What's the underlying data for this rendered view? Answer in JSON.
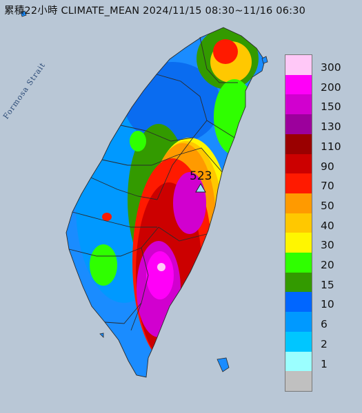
{
  "title": "累積22小時 CLIMATE_MEAN 2024/11/15 08:30~11/16 06:30",
  "map_labels": {
    "strait": "Formosa Strait"
  },
  "peak": {
    "value": "523",
    "marker": "triangle-marker"
  },
  "legend": [
    {
      "label": "300",
      "color": "#ffc8f7"
    },
    {
      "label": "200",
      "color": "#ff00f8"
    },
    {
      "label": "150",
      "color": "#d100cf"
    },
    {
      "label": "130",
      "color": "#9c009c"
    },
    {
      "label": "110",
      "color": "#9a0000"
    },
    {
      "label": "90",
      "color": "#cc0000"
    },
    {
      "label": "70",
      "color": "#ff1a00"
    },
    {
      "label": "50",
      "color": "#ff9a00"
    },
    {
      "label": "40",
      "color": "#ffc800"
    },
    {
      "label": "30",
      "color": "#fff600"
    },
    {
      "label": "20",
      "color": "#2fff00"
    },
    {
      "label": "15",
      "color": "#339a00"
    },
    {
      "label": "10",
      "color": "#0066ff"
    },
    {
      "label": "6",
      "color": "#0099ff"
    },
    {
      "label": "2",
      "color": "#00c6ff"
    },
    {
      "label": "1",
      "color": "#9bffff"
    },
    {
      "label": "",
      "color": "#c0c0c0"
    }
  ]
}
